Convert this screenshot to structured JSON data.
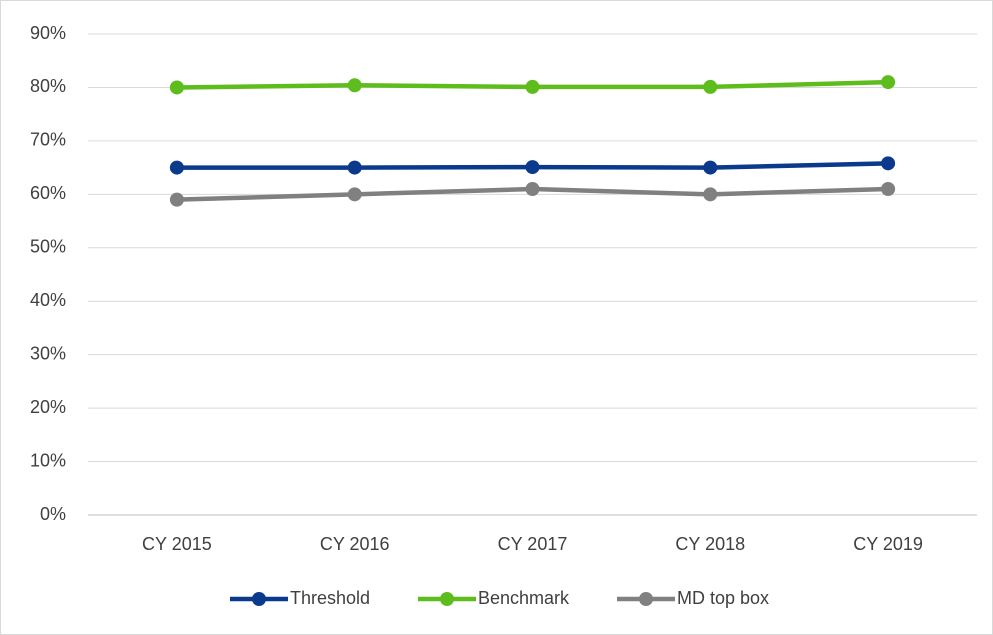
{
  "chart_data": {
    "type": "line",
    "categories": [
      "CY 2015",
      "CY 2016",
      "CY 2017",
      "CY 2018",
      "CY 2019"
    ],
    "series": [
      {
        "name": "Threshold",
        "color": "#0b3a8c",
        "values": [
          65,
          65,
          65.1,
          65,
          65.8
        ]
      },
      {
        "name": "Benchmark",
        "color": "#5cbd1c",
        "values": [
          80,
          80.4,
          80.1,
          80.1,
          81
        ]
      },
      {
        "name": "MD top box",
        "color": "#808080",
        "values": [
          59,
          60,
          61,
          60,
          61
        ]
      }
    ],
    "ylim": [
      0,
      90
    ],
    "yticks": [
      {
        "value": 0,
        "label": "0%"
      },
      {
        "value": 10,
        "label": "10%"
      },
      {
        "value": 20,
        "label": "20%"
      },
      {
        "value": 30,
        "label": "30%"
      },
      {
        "value": 40,
        "label": "40%"
      },
      {
        "value": 50,
        "label": "50%"
      },
      {
        "value": 60,
        "label": "60%"
      },
      {
        "value": 70,
        "label": "70%"
      },
      {
        "value": 80,
        "label": "80%"
      },
      {
        "value": 90,
        "label": "90%"
      }
    ],
    "grid": true,
    "legend": "bottom"
  }
}
